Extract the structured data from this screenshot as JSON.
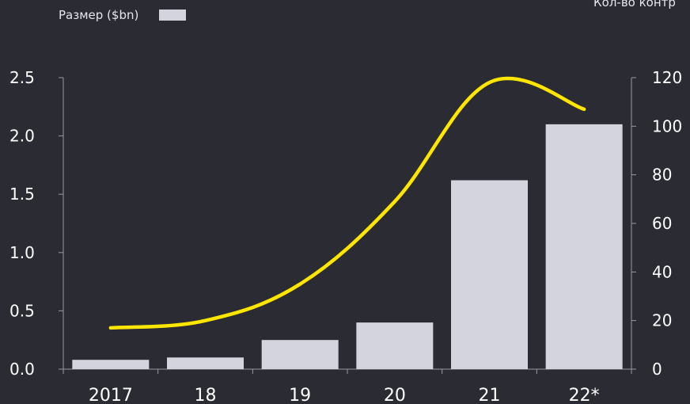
{
  "legend": {
    "bar_label": "Размер ($bn)",
    "line_label": "Кол-во контр"
  },
  "colors": {
    "background": "#2b2b33",
    "bar": "#d4d4de",
    "line": "#ffe600",
    "text": "#ffffff",
    "axis": "#9a9aa4"
  },
  "chart_data": {
    "type": "bar",
    "categories": [
      "2017",
      "18",
      "19",
      "20",
      "21",
      "22*"
    ],
    "series": [
      {
        "name": "Размер ($bn)",
        "type": "bar",
        "axis": "left",
        "values": [
          0.08,
          0.1,
          0.25,
          0.4,
          1.62,
          2.1
        ]
      },
      {
        "name": "Кол-во контр",
        "type": "line",
        "axis": "right",
        "values": [
          17,
          20,
          35,
          69,
          118,
          107
        ]
      }
    ],
    "left_axis": {
      "ylim": [
        0,
        2.5
      ],
      "ticks": [
        "0.0",
        "0.5",
        "1.0",
        "1.5",
        "2.0",
        "2.5"
      ]
    },
    "right_axis": {
      "ylim": [
        0,
        120
      ],
      "ticks": [
        "0",
        "20",
        "40",
        "60",
        "80",
        "100",
        "120"
      ]
    },
    "grid": false,
    "legend_position": "top"
  }
}
